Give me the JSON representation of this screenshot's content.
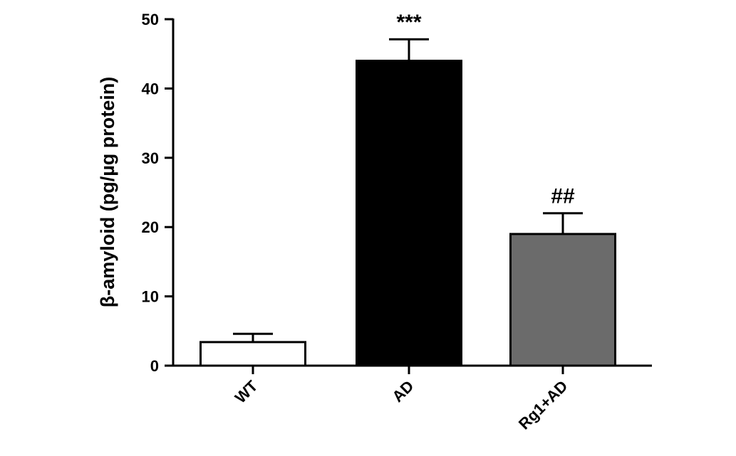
{
  "chart_data": {
    "type": "bar",
    "title": "",
    "xlabel": "",
    "ylabel": "β-amyloid (pg/µg protein)",
    "ylim": [
      0,
      50
    ],
    "yticks": [
      0,
      10,
      20,
      30,
      40,
      50
    ],
    "grid": false,
    "categories": [
      "WT",
      "AD",
      "Rg1+AD"
    ],
    "values": [
      3.4,
      44.0,
      19.0
    ],
    "errors": [
      1.2,
      3.1,
      3.0
    ],
    "annotations": [
      "",
      "***",
      "##"
    ],
    "bar_colors": [
      "#ffffff",
      "#000000",
      "#6b6b6b"
    ],
    "bar_edge_color": "#000000"
  }
}
